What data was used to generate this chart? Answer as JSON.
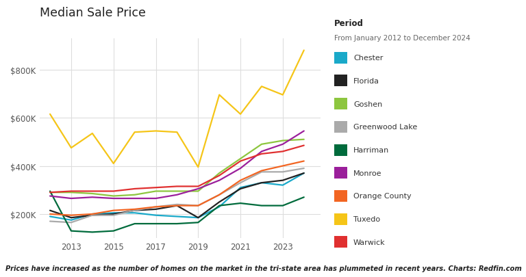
{
  "title": "Median Sale Price",
  "period_label": "Period",
  "period_text": "From January 2012 to December 2024",
  "footer": "Prices have increased as the number of homes on the market in the tri-state area has plummeted in recent years. Charts: Redfin.com",
  "x_ticks": [
    2013,
    2015,
    2017,
    2019,
    2021,
    2023
  ],
  "y_ticks": [
    200000,
    400000,
    600000,
    800000
  ],
  "y_labels": [
    "$200K",
    "$400K",
    "$600K",
    "$800K"
  ],
  "series": {
    "Chester": {
      "color": "#1aa9c9",
      "data": {
        "2012": 190000,
        "2013": 175000,
        "2014": 200000,
        "2015": 205000,
        "2016": 205000,
        "2017": 195000,
        "2018": 190000,
        "2019": 185000,
        "2020": 230000,
        "2021": 310000,
        "2022": 330000,
        "2023": 320000,
        "2024": 370000
      }
    },
    "Florida": {
      "color": "#222222",
      "data": {
        "2012": 215000,
        "2013": 185000,
        "2014": 195000,
        "2015": 200000,
        "2016": 215000,
        "2017": 220000,
        "2018": 235000,
        "2019": 185000,
        "2020": 250000,
        "2021": 305000,
        "2022": 330000,
        "2023": 340000,
        "2024": 370000
      }
    },
    "Goshen": {
      "color": "#8dc63f",
      "data": {
        "2012": 290000,
        "2013": 290000,
        "2014": 285000,
        "2015": 275000,
        "2016": 280000,
        "2017": 295000,
        "2018": 295000,
        "2019": 295000,
        "2020": 370000,
        "2021": 430000,
        "2022": 490000,
        "2023": 505000,
        "2024": 510000
      }
    },
    "Greenwood Lake": {
      "color": "#aaaaaa",
      "data": {
        "2012": 170000,
        "2013": 165000,
        "2014": 195000,
        "2015": 195000,
        "2016": 215000,
        "2017": 230000,
        "2018": 240000,
        "2019": 235000,
        "2020": 280000,
        "2021": 330000,
        "2022": 375000,
        "2023": 375000,
        "2024": 390000
      }
    },
    "Harriman": {
      "color": "#006b3c",
      "data": {
        "2012": 295000,
        "2013": 130000,
        "2014": 125000,
        "2015": 130000,
        "2016": 160000,
        "2017": 160000,
        "2018": 160000,
        "2019": 165000,
        "2020": 235000,
        "2021": 245000,
        "2022": 235000,
        "2023": 235000,
        "2024": 270000
      }
    },
    "Monroe": {
      "color": "#9b1f9b",
      "data": {
        "2012": 275000,
        "2013": 265000,
        "2014": 270000,
        "2015": 265000,
        "2016": 265000,
        "2017": 265000,
        "2018": 280000,
        "2019": 305000,
        "2020": 340000,
        "2021": 390000,
        "2022": 460000,
        "2023": 490000,
        "2024": 545000
      }
    },
    "Orange County": {
      "color": "#f26522",
      "data": {
        "2012": 200000,
        "2013": 195000,
        "2014": 200000,
        "2015": 215000,
        "2016": 220000,
        "2017": 230000,
        "2018": 235000,
        "2019": 235000,
        "2020": 280000,
        "2021": 340000,
        "2022": 380000,
        "2023": 400000,
        "2024": 420000
      }
    },
    "Tuxedo": {
      "color": "#f5c518",
      "data": {
        "2012": 615000,
        "2013": 475000,
        "2014": 535000,
        "2015": 410000,
        "2016": 540000,
        "2017": 545000,
        "2018": 540000,
        "2019": 395000,
        "2020": 695000,
        "2021": 615000,
        "2022": 730000,
        "2023": 695000,
        "2024": 880000
      }
    },
    "Warwick": {
      "color": "#e03030",
      "data": {
        "2012": 290000,
        "2013": 295000,
        "2014": 295000,
        "2015": 295000,
        "2016": 305000,
        "2017": 310000,
        "2018": 315000,
        "2019": 315000,
        "2020": 360000,
        "2021": 420000,
        "2022": 450000,
        "2023": 460000,
        "2024": 485000
      }
    }
  },
  "bg_color": "#ffffff",
  "grid_color": "#dddddd",
  "xlim": [
    2011.5,
    2024.8
  ],
  "ylim": [
    100000,
    930000
  ]
}
